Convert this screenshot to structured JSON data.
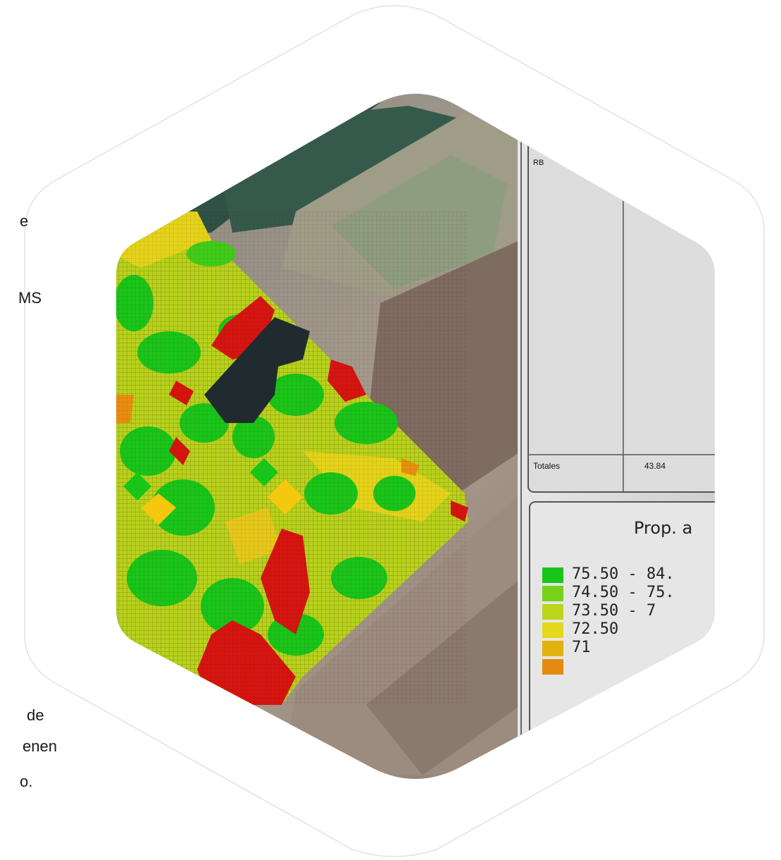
{
  "side_text": {
    "line1": "e",
    "line2": "MS",
    "line3": "de",
    "line4": "enen",
    "line5": "o."
  },
  "report": {
    "header_fragment": "RB",
    "totals_label": "Totales",
    "totals_value": "43.84"
  },
  "legend": {
    "title": "Prop. a",
    "items": [
      {
        "label": "75.50 - 84.",
        "color": "#19c519"
      },
      {
        "label": "74.50 - 75.",
        "color": "#76d21b"
      },
      {
        "label": "73.50 - 7",
        "color": "#bcd61b"
      },
      {
        "label": "72.50",
        "color": "#e4d81a"
      },
      {
        "label": "71",
        "color": "#e3b20f"
      },
      {
        "label": "",
        "color": "#e48a11"
      }
    ]
  },
  "colors": {
    "green": "#19c519",
    "yellow_green": "#b6d51c",
    "yellow": "#e6d51a",
    "red": "#d8100f",
    "dark_plot": "#1f2b2f",
    "soil": "#8e7f73"
  }
}
